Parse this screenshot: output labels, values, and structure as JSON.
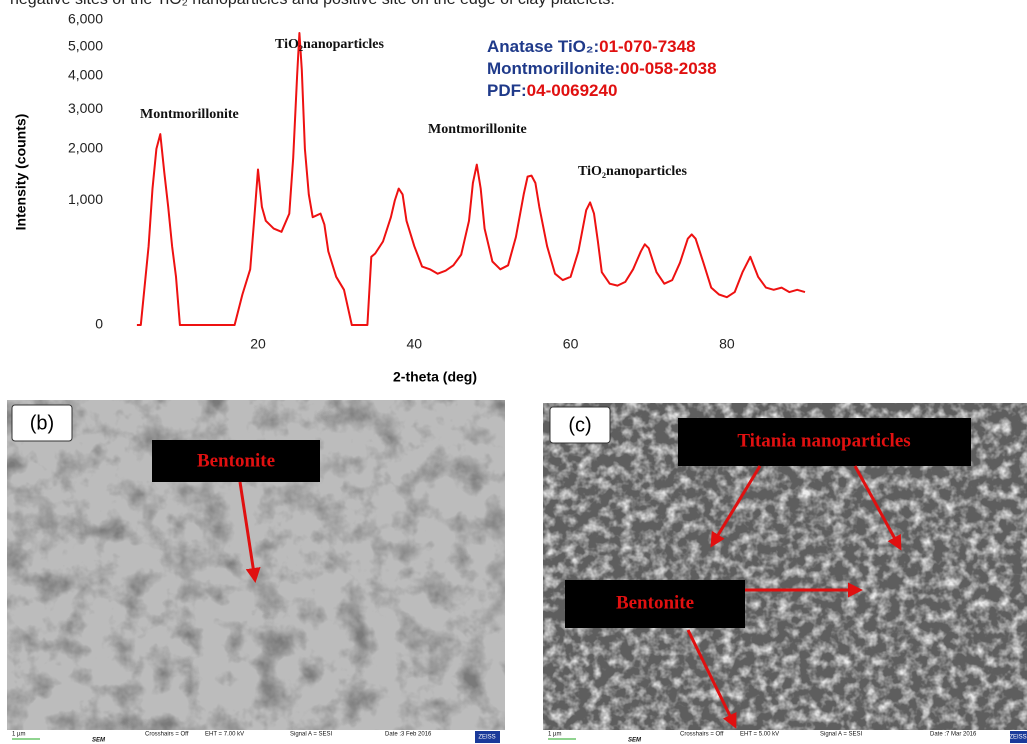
{
  "caption_fragment": "negative sites of the TiO₂ nanoparticles and positive site on the edge of clay platelets.",
  "chart_data": {
    "type": "line",
    "y_label": "Intensity (counts)",
    "x_label": "2-theta (deg)",
    "color": "#ee1111",
    "yscale": "sqrt",
    "grid": false,
    "xlim": [
      4,
      90
    ],
    "xticks": [
      20,
      40,
      60,
      80
    ],
    "ylim": [
      0,
      6000
    ],
    "yticks": [
      0,
      {
        "value": 1000,
        "label": "1,000"
      },
      {
        "value": 2000,
        "label": "2,000"
      },
      {
        "value": 3000,
        "label": "3,000"
      },
      {
        "value": 4000,
        "label": "4,000"
      },
      {
        "value": 5000,
        "label": "5,000"
      },
      {
        "value": 6000,
        "label": "6,000"
      }
    ],
    "x": [
      4.5,
      5,
      6,
      6.5,
      7,
      7.5,
      8,
      8.5,
      9,
      9.5,
      10,
      17,
      18,
      19,
      19.5,
      20,
      20.5,
      21,
      22,
      23,
      24,
      24.5,
      25,
      25.3,
      25.6,
      26,
      26.5,
      27,
      28,
      28.5,
      29,
      30,
      31,
      32,
      34,
      34.5,
      35,
      36,
      37,
      37.5,
      38,
      38.5,
      39,
      40,
      41,
      42,
      43,
      44,
      45,
      46,
      47,
      47.5,
      48,
      48.5,
      49,
      50,
      51,
      52,
      53,
      54,
      54.5,
      55,
      55.5,
      56,
      57,
      58,
      59,
      60,
      61,
      62,
      62.5,
      63,
      63.5,
      64,
      65,
      66,
      67,
      68,
      69,
      69.5,
      70,
      71,
      72,
      73,
      74,
      75,
      75.5,
      76,
      77,
      78,
      79,
      80,
      81,
      82,
      83,
      84,
      85,
      86,
      87,
      88,
      89,
      90
    ],
    "values": [
      0,
      0,
      400,
      1200,
      2000,
      2350,
      1500,
      900,
      400,
      150,
      0,
      0,
      60,
      200,
      700,
      1560,
      900,
      700,
      600,
      560,
      800,
      1800,
      4000,
      5500,
      4200,
      2000,
      1100,
      750,
      800,
      650,
      350,
      150,
      80,
      0,
      0,
      300,
      330,
      450,
      750,
      1000,
      1200,
      1100,
      700,
      400,
      220,
      200,
      170,
      190,
      230,
      320,
      700,
      1300,
      1660,
      1200,
      600,
      260,
      200,
      230,
      500,
      1100,
      1420,
      1440,
      1300,
      900,
      400,
      170,
      130,
      150,
      350,
      850,
      970,
      800,
      450,
      180,
      110,
      100,
      120,
      200,
      350,
      420,
      380,
      180,
      110,
      130,
      250,
      480,
      530,
      480,
      250,
      90,
      60,
      50,
      70,
      180,
      300,
      150,
      90,
      80,
      90,
      70,
      80,
      70
    ],
    "annotations": [
      "Montmorillonite",
      "TiO₂nanoparticles",
      "Montmorillonite",
      "TiO₂nanoparticles"
    ],
    "notes": [
      {
        "label": "Anatase TiO₂:",
        "code": "01-070-7348"
      },
      {
        "label": "Montmorillonite:",
        "code": "00-058-2038"
      },
      {
        "label": "PDF:",
        "code": "04-0069240"
      }
    ]
  },
  "panels": [
    {
      "label": "(b)",
      "tags": [
        "Bentonite"
      ],
      "scale": "1 µm",
      "detector": "SEM",
      "info": [
        "Crosshairs = Off",
        "EHT = 7.00 kV",
        "Signal A = SESI",
        "Date :3 Feb 2016",
        "ZEISS"
      ]
    },
    {
      "label": "(c)",
      "tags": [
        "Titania nanoparticles",
        "Bentonite"
      ],
      "scale": "1 µm",
      "detector": "SEM",
      "info": [
        "Crosshairs = Off",
        "EHT = 5.00 kV",
        "Signal A = SESI",
        "Date :7 Mar 2016",
        "ZEISS"
      ]
    }
  ]
}
